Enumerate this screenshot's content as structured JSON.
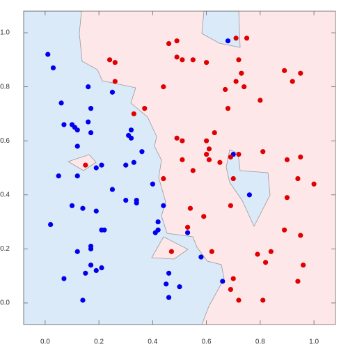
{
  "chart_data": {
    "type": "scatter",
    "xlim": [
      -0.08,
      1.08
    ],
    "ylim": [
      -0.08,
      1.08
    ],
    "xticks": [
      {
        "value": 0,
        "label": "0.0"
      },
      0.2,
      0.4,
      0.6,
      0.8,
      {
        "value": 1,
        "label": "1.0"
      }
    ],
    "yticks": [
      {
        "value": 0,
        "label": "0.0"
      },
      0.2,
      0.4,
      0.6,
      0.8,
      {
        "value": 1,
        "label": "1.0"
      }
    ],
    "series": [
      {
        "color": "#0000ee",
        "x": [
          0.01,
          0.03,
          0.16,
          0.25,
          0.06,
          0.17,
          0.07,
          0.1,
          0.11,
          0.12,
          0.16,
          0.17,
          0.12,
          0.32,
          0.31,
          0.32,
          0.36,
          0.3,
          0.33,
          0.19,
          0.21,
          0.05,
          0.12,
          0.25,
          0.1,
          0.14,
          0.19,
          0.3,
          0.34,
          0.34,
          0.4,
          0.44,
          0.21,
          0.22,
          0.02,
          0.17,
          0.17,
          0.12,
          0.17,
          0.21,
          0.19,
          0.46,
          0.45,
          0.15,
          0.5,
          0.07,
          0.42,
          0.42,
          0.41,
          0.53,
          0.58,
          0.66,
          0.46,
          0.14,
          0.68,
          0.7,
          0.76
        ],
        "values": [
          0.92,
          0.87,
          0.8,
          0.78,
          0.74,
          0.72,
          0.66,
          0.66,
          0.65,
          0.64,
          0.67,
          0.63,
          0.58,
          0.64,
          0.62,
          0.61,
          0.56,
          0.51,
          0.52,
          0.5,
          0.51,
          0.47,
          0.47,
          0.42,
          0.36,
          0.35,
          0.34,
          0.38,
          0.38,
          0.37,
          0.44,
          0.36,
          0.27,
          0.27,
          0.29,
          0.21,
          0.2,
          0.19,
          0.14,
          0.13,
          0.12,
          0.11,
          0.07,
          0.11,
          0.06,
          0.09,
          0.3,
          0.27,
          0.26,
          0.26,
          0.17,
          0.08,
          0.02,
          0.01,
          0.97,
          0.55,
          0.4
        ]
      },
      {
        "color": "#e00000",
        "x": [
          0.24,
          0.26,
          0.26,
          0.46,
          0.49,
          0.49,
          0.51,
          0.55,
          0.6,
          0.71,
          0.75,
          0.72,
          0.73,
          0.71,
          0.74,
          0.67,
          0.89,
          0.92,
          0.95,
          0.44,
          0.33,
          0.37,
          0.68,
          0.8,
          0.63,
          0.49,
          0.51,
          0.6,
          0.61,
          0.6,
          0.61,
          0.51,
          0.55,
          0.65,
          0.69,
          0.72,
          0.81,
          0.9,
          0.95,
          0.94,
          1.0,
          0.44,
          0.7,
          0.54,
          0.59,
          0.69,
          0.9,
          0.53,
          0.89,
          0.95,
          0.62,
          0.84,
          0.79,
          0.82,
          0.96,
          0.94,
          0.47,
          0.15,
          0.7,
          0.69,
          0.72,
          0.81
        ],
        "values": [
          0.9,
          0.89,
          0.82,
          0.96,
          0.97,
          0.91,
          0.9,
          0.9,
          0.89,
          0.98,
          0.98,
          0.9,
          0.85,
          0.82,
          0.8,
          0.79,
          0.86,
          0.82,
          0.85,
          0.8,
          0.7,
          0.72,
          0.72,
          0.75,
          0.63,
          0.61,
          0.6,
          0.6,
          0.57,
          0.55,
          0.53,
          0.53,
          0.49,
          0.52,
          0.54,
          0.55,
          0.56,
          0.53,
          0.54,
          0.46,
          0.44,
          0.46,
          0.46,
          0.35,
          0.32,
          0.36,
          0.39,
          0.28,
          0.27,
          0.25,
          0.19,
          0.19,
          0.18,
          0.15,
          0.14,
          0.08,
          0.19,
          0.51,
          0.09,
          0.05,
          0.01,
          0.01
        ]
      }
    ]
  }
}
